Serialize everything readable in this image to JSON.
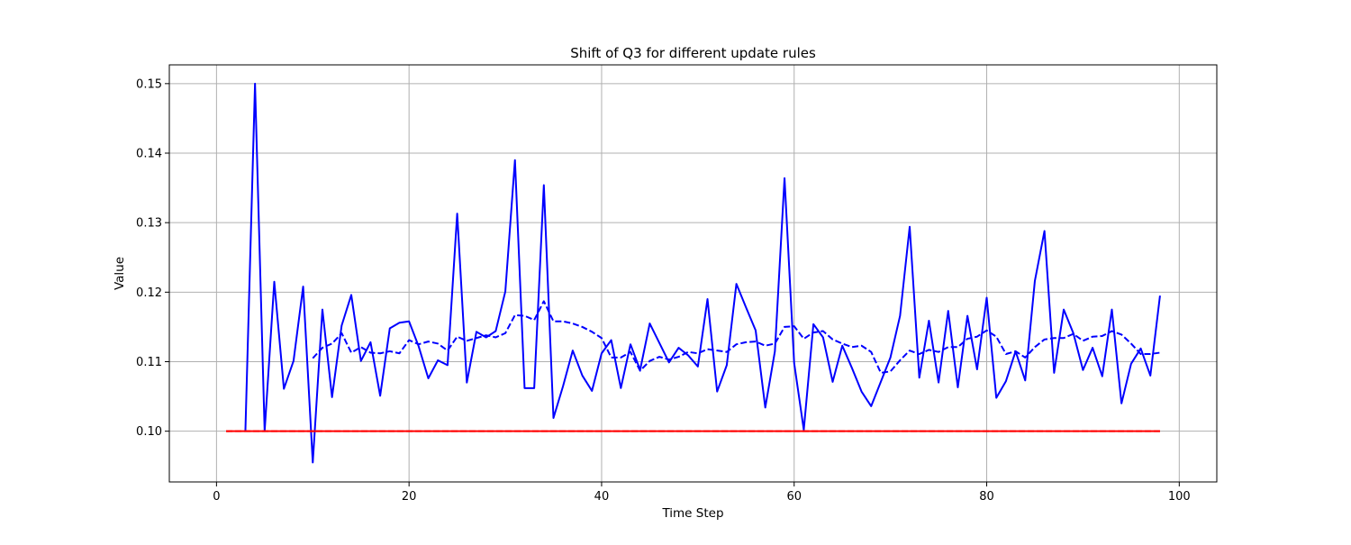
{
  "chart_data": {
    "type": "line",
    "title": "Shift of Q3 for different update rules",
    "xlabel": "Time Step",
    "ylabel": "Value",
    "xlim": [
      -4.9,
      103.9
    ],
    "ylim": [
      0.0927,
      0.1527
    ],
    "xticks": [
      0,
      20,
      40,
      60,
      80,
      100
    ],
    "xtick_labels": [
      "0",
      "20",
      "40",
      "60",
      "80",
      "100"
    ],
    "yticks": [
      0.1,
      0.11,
      0.12,
      0.13,
      0.14,
      0.15
    ],
    "ytick_labels": [
      "0.10",
      "0.11",
      "0.12",
      "0.13",
      "0.14",
      "0.15"
    ],
    "grid": true,
    "legend": false,
    "series": [
      {
        "style": "solid",
        "color": "#0000ff",
        "x": [
          3,
          4,
          5,
          6,
          7,
          8,
          9,
          10,
          11,
          12,
          13,
          14,
          15,
          16,
          17,
          18,
          19,
          20,
          21,
          22,
          23,
          24,
          25,
          26,
          27,
          28,
          29,
          30,
          31,
          32,
          33,
          34,
          35,
          36,
          37,
          38,
          39,
          40,
          41,
          42,
          43,
          44,
          45,
          46,
          47,
          48,
          49,
          50,
          51,
          52,
          53,
          54,
          55,
          56,
          57,
          58,
          59,
          60,
          61,
          62,
          63,
          64,
          65,
          66,
          67,
          68,
          69,
          70,
          71,
          72,
          73,
          74,
          75,
          76,
          77,
          78,
          79,
          80,
          81,
          82,
          83,
          84,
          85,
          86,
          87,
          88,
          89,
          90,
          91,
          92,
          93,
          94,
          95,
          96,
          97,
          98
        ],
        "y": [
          0.1,
          0.15,
          0.1,
          0.1215,
          0.1061,
          0.1101,
          0.1208,
          0.0955,
          0.1175,
          0.1049,
          0.1152,
          0.1196,
          0.1101,
          0.1128,
          0.1051,
          0.1148,
          0.1156,
          0.1158,
          0.1122,
          0.1076,
          0.1102,
          0.1095,
          0.1313,
          0.107,
          0.1143,
          0.1135,
          0.1144,
          0.1201,
          0.139,
          0.1062,
          0.1062,
          0.1354,
          0.1019,
          0.1065,
          0.1116,
          0.108,
          0.1058,
          0.1112,
          0.1131,
          0.1062,
          0.1125,
          0.1088,
          0.1155,
          0.1127,
          0.1099,
          0.112,
          0.1109,
          0.1093,
          0.119,
          0.1057,
          0.1095,
          0.1212,
          0.1178,
          0.1145,
          0.1034,
          0.1115,
          0.1364,
          0.1098,
          0.1002,
          0.1154,
          0.1135,
          0.1071,
          0.1123,
          0.1091,
          0.1057,
          0.1036,
          0.1071,
          0.1106,
          0.1166,
          0.1294,
          0.1077,
          0.1159,
          0.107,
          0.1173,
          0.1063,
          0.1166,
          0.1089,
          0.1192,
          0.1048,
          0.1072,
          0.1115,
          0.1073,
          0.1216,
          0.1288,
          0.1084,
          0.1175,
          0.1141,
          0.1088,
          0.112,
          0.1079,
          0.1175,
          0.104,
          0.1097,
          0.1119,
          0.108,
          0.1195
        ]
      },
      {
        "style": "dashed",
        "color": "#0000ff",
        "x": [
          10,
          11,
          12,
          13,
          14,
          15,
          16,
          17,
          18,
          19,
          20,
          21,
          22,
          23,
          24,
          25,
          26,
          27,
          28,
          29,
          30,
          31,
          32,
          33,
          34,
          35,
          36,
          37,
          38,
          39,
          40,
          41,
          42,
          43,
          44,
          45,
          46,
          47,
          48,
          49,
          50,
          51,
          52,
          53,
          54,
          55,
          56,
          57,
          58,
          59,
          60,
          61,
          62,
          63,
          64,
          65,
          66,
          67,
          68,
          69,
          70,
          71,
          72,
          73,
          74,
          75,
          76,
          77,
          78,
          79,
          80,
          81,
          82,
          83,
          84,
          85,
          86,
          87,
          88,
          89,
          90,
          91,
          92,
          93,
          94,
          95,
          96,
          97,
          98
        ],
        "y": [
          0.1105,
          0.112,
          0.1126,
          0.1141,
          0.1113,
          0.1121,
          0.1113,
          0.1112,
          0.1115,
          0.1112,
          0.1131,
          0.1125,
          0.1129,
          0.1126,
          0.1116,
          0.1136,
          0.113,
          0.1134,
          0.1138,
          0.1135,
          0.1141,
          0.1167,
          0.1166,
          0.116,
          0.1187,
          0.1158,
          0.1158,
          0.1155,
          0.115,
          0.1143,
          0.1134,
          0.1106,
          0.1106,
          0.1114,
          0.1087,
          0.1101,
          0.1107,
          0.1103,
          0.1107,
          0.1114,
          0.1112,
          0.1118,
          0.1116,
          0.1114,
          0.1125,
          0.1128,
          0.1129,
          0.1123,
          0.1126,
          0.115,
          0.1151,
          0.1133,
          0.1142,
          0.1144,
          0.1132,
          0.1126,
          0.1121,
          0.1123,
          0.1114,
          0.1084,
          0.1086,
          0.1102,
          0.1116,
          0.1111,
          0.1117,
          0.1114,
          0.1121,
          0.1121,
          0.1133,
          0.1136,
          0.1145,
          0.1136,
          0.1111,
          0.1115,
          0.1106,
          0.1121,
          0.1132,
          0.1134,
          0.1134,
          0.114,
          0.113,
          0.1136,
          0.1137,
          0.1144,
          0.1139,
          0.1126,
          0.1111,
          0.1111,
          0.1113
        ]
      },
      {
        "style": "solid",
        "color": "#ff0000",
        "x": [
          1,
          98
        ],
        "y": [
          0.1,
          0.1
        ]
      },
      {
        "style": "dashed",
        "color": "#ff0000",
        "x": [
          1,
          98
        ],
        "y": [
          0.1,
          0.1
        ]
      }
    ]
  }
}
